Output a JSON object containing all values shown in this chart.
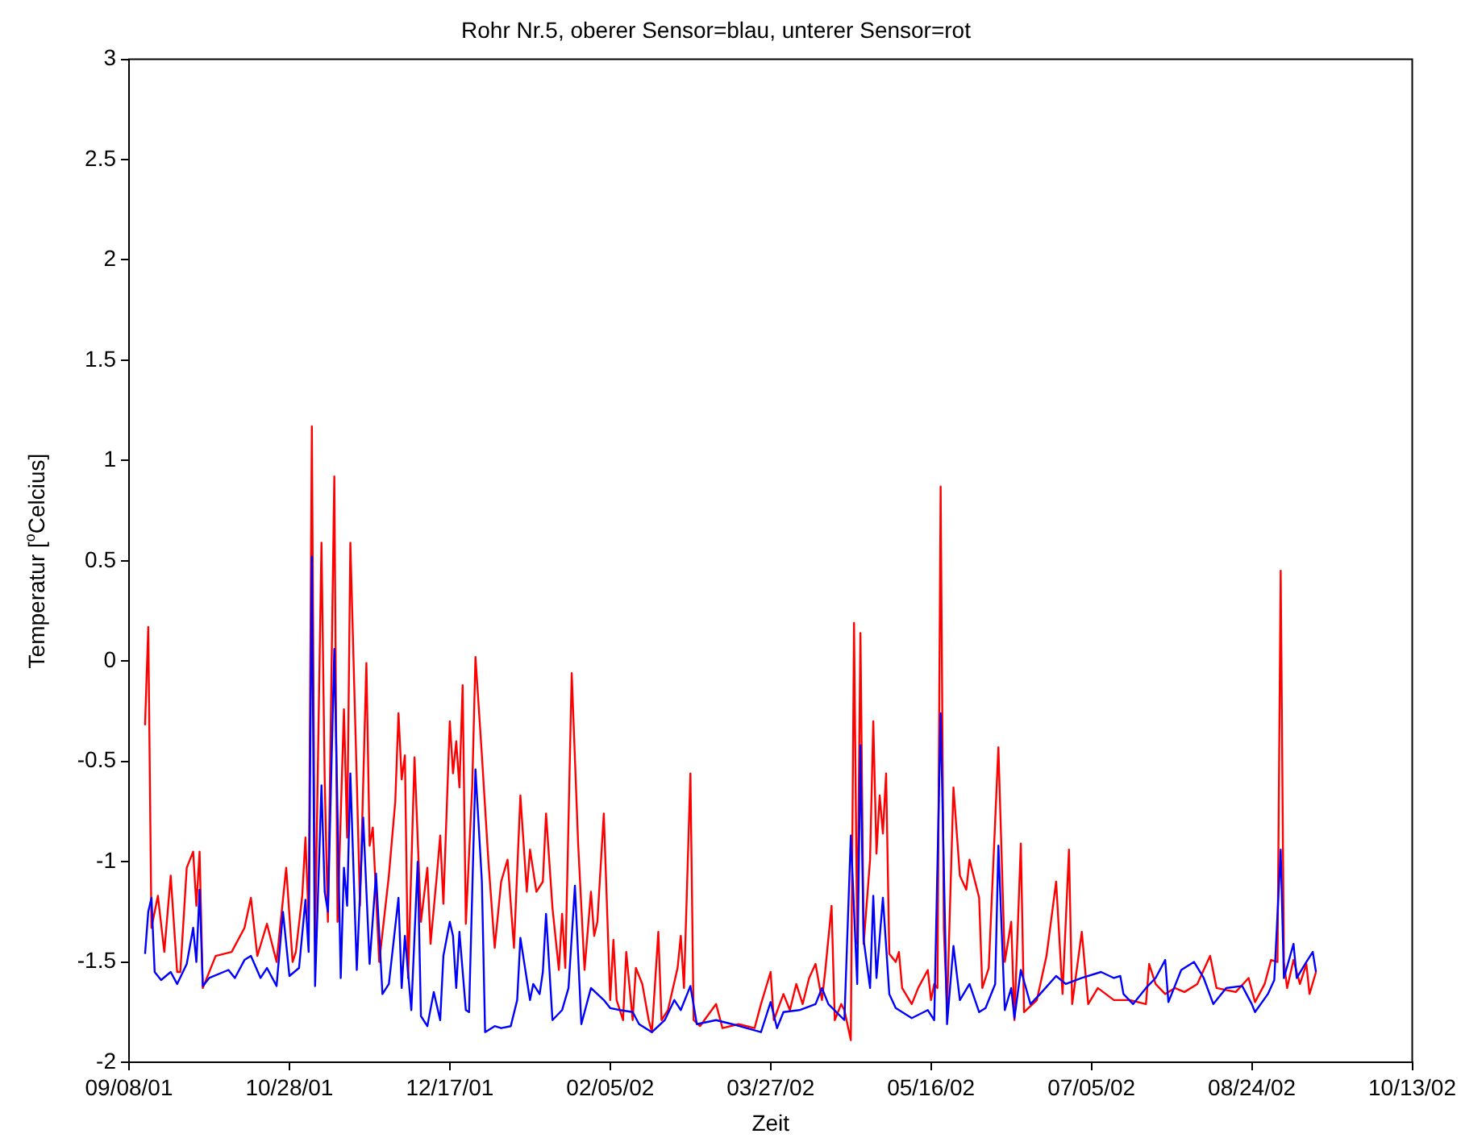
{
  "chart_data": {
    "type": "line",
    "title": "Rohr Nr.5, oberer Sensor=blau, unterer Sensor=rot",
    "xlabel": "Zeit",
    "ylabel": "Temperatur [$^{o}$Celcius]",
    "xlim": [
      "2001-09-08",
      "2002-10-13"
    ],
    "xticks": [
      {
        "value": "2001-09-08",
        "label": "09/08/01"
      },
      {
        "value": "2001-10-28",
        "label": "10/28/01"
      },
      {
        "value": "2001-12-17",
        "label": "12/17/01"
      },
      {
        "value": "2002-02-05",
        "label": "02/05/02"
      },
      {
        "value": "2002-03-27",
        "label": "03/27/02"
      },
      {
        "value": "2002-05-16",
        "label": "05/16/02"
      },
      {
        "value": "2002-07-05",
        "label": "07/05/02"
      },
      {
        "value": "2002-08-24",
        "label": "08/24/02"
      },
      {
        "value": "2002-10-13",
        "label": "10/13/02"
      }
    ],
    "ylim": [
      -2,
      3
    ],
    "yticks": [
      -2,
      -1.5,
      -1,
      -0.5,
      0,
      0.5,
      1,
      1.5,
      2,
      2.5,
      3
    ],
    "grid": false,
    "legend": false,
    "series": [
      {
        "color": "#ff0000",
        "x": [
          "2001-09-13",
          "2001-09-14",
          "2001-09-15",
          "2001-09-17",
          "2001-09-19",
          "2001-09-21",
          "2001-09-23",
          "2001-09-24",
          "2001-09-26",
          "2001-09-28",
          "2001-09-29",
          "2001-09-30",
          "2001-10-01",
          "2001-10-05",
          "2001-10-10",
          "2001-10-14",
          "2001-10-16",
          "2001-10-18",
          "2001-10-21",
          "2001-10-24",
          "2001-10-27",
          "2001-10-29",
          "2001-10-30",
          "2001-11-01",
          "2001-11-02",
          "2001-11-03",
          "2001-11-04",
          "2001-11-05",
          "2001-11-07",
          "2001-11-08",
          "2001-11-09",
          "2001-11-11",
          "2001-11-12",
          "2001-11-14",
          "2001-11-15",
          "2001-11-16",
          "2001-11-18",
          "2001-11-19",
          "2001-11-21",
          "2001-11-22",
          "2001-11-23",
          "2001-11-25",
          "2001-11-28",
          "2001-11-30",
          "2001-12-01",
          "2001-12-02",
          "2001-12-03",
          "2001-12-04",
          "2001-12-06",
          "2001-12-08",
          "2001-12-10",
          "2001-12-11",
          "2001-12-13",
          "2001-12-14",
          "2001-12-15",
          "2001-12-17",
          "2001-12-18",
          "2001-12-19",
          "2001-12-20",
          "2001-12-21",
          "2001-12-22",
          "2001-12-24",
          "2001-12-25",
          "2001-12-27",
          "2001-12-29",
          "2001-12-31",
          "2002-01-02",
          "2002-01-04",
          "2002-01-06",
          "2002-01-08",
          "2002-01-10",
          "2002-01-11",
          "2002-01-13",
          "2002-01-15",
          "2002-01-16",
          "2002-01-18",
          "2002-01-20",
          "2002-01-21",
          "2002-01-22",
          "2002-01-23",
          "2002-01-24",
          "2002-01-26",
          "2002-01-28",
          "2002-01-30",
          "2002-01-31",
          "2002-02-01",
          "2002-02-03",
          "2002-02-05",
          "2002-02-06",
          "2002-02-07",
          "2002-02-09",
          "2002-02-10",
          "2002-02-12",
          "2002-02-13",
          "2002-02-15",
          "2002-02-17",
          "2002-02-18",
          "2002-02-20",
          "2002-02-21",
          "2002-02-23",
          "2002-02-26",
          "2002-02-27",
          "2002-02-28",
          "2002-03-02",
          "2002-03-03",
          "2002-03-05",
          "2002-03-10",
          "2002-03-12",
          "2002-03-17",
          "2002-03-22",
          "2002-03-24",
          "2002-03-27",
          "2002-03-28",
          "2002-03-31",
          "2002-04-02",
          "2002-04-04",
          "2002-04-06",
          "2002-04-08",
          "2002-04-10",
          "2002-04-12",
          "2002-04-13",
          "2002-04-15",
          "2002-04-16",
          "2002-04-18",
          "2002-04-19",
          "2002-04-21",
          "2002-04-22",
          "2002-04-23",
          "2002-04-24",
          "2002-04-25",
          "2002-04-27",
          "2002-04-28",
          "2002-04-29",
          "2002-04-30",
          "2002-05-01",
          "2002-05-02",
          "2002-05-03",
          "2002-05-05",
          "2002-05-06",
          "2002-05-07",
          "2002-05-10",
          "2002-05-12",
          "2002-05-15",
          "2002-05-16",
          "2002-05-17",
          "2002-05-18",
          "2002-05-19",
          "2002-05-20",
          "2002-05-21",
          "2002-05-23",
          "2002-05-25",
          "2002-05-27",
          "2002-05-28",
          "2002-05-31",
          "2002-06-01",
          "2002-06-03",
          "2002-06-06",
          "2002-06-08",
          "2002-06-10",
          "2002-06-11",
          "2002-06-13",
          "2002-06-14",
          "2002-06-18",
          "2002-06-21",
          "2002-06-24",
          "2002-06-26",
          "2002-06-28",
          "2002-06-29",
          "2002-07-02",
          "2002-07-04",
          "2002-07-07",
          "2002-07-12",
          "2002-07-17",
          "2002-07-22",
          "2002-07-23",
          "2002-07-25",
          "2002-07-28",
          "2002-07-31",
          "2002-08-03",
          "2002-08-07",
          "2002-08-11",
          "2002-08-13",
          "2002-08-19",
          "2002-08-23",
          "2002-08-25",
          "2002-08-28",
          "2002-08-30",
          "2002-09-01",
          "2002-09-02",
          "2002-09-03",
          "2002-09-04",
          "2002-09-06",
          "2002-09-08",
          "2002-09-10",
          "2002-09-11",
          "2002-09-13"
        ],
        "values": [
          -0.32,
          0.17,
          -1.33,
          -1.17,
          -1.45,
          -1.07,
          -1.55,
          -1.55,
          -1.03,
          -0.95,
          -1.22,
          -0.95,
          -1.63,
          -1.47,
          -1.45,
          -1.33,
          -1.18,
          -1.47,
          -1.31,
          -1.5,
          -1.03,
          -1.5,
          -1.45,
          -1.17,
          -0.88,
          -1.29,
          1.17,
          -1.39,
          0.59,
          -0.59,
          -1.3,
          0.92,
          -1.3,
          -0.24,
          -0.88,
          0.59,
          -0.59,
          -1.22,
          -0.01,
          -0.92,
          -0.83,
          -1.5,
          -1.07,
          -0.7,
          -0.26,
          -0.59,
          -0.47,
          -1.58,
          -0.48,
          -1.3,
          -1.03,
          -1.41,
          -1.06,
          -0.87,
          -1.21,
          -0.3,
          -0.56,
          -0.4,
          -0.63,
          -0.12,
          -1.31,
          -0.62,
          0.02,
          -0.47,
          -0.99,
          -1.43,
          -1.1,
          -0.99,
          -1.43,
          -0.67,
          -1.15,
          -0.94,
          -1.15,
          -1.1,
          -0.76,
          -1.23,
          -1.54,
          -1.26,
          -1.53,
          -0.8,
          -0.06,
          -0.91,
          -1.54,
          -1.15,
          -1.37,
          -1.3,
          -0.76,
          -1.69,
          -1.39,
          -1.69,
          -1.79,
          -1.45,
          -1.79,
          -1.53,
          -1.61,
          -1.79,
          -1.85,
          -1.35,
          -1.79,
          -1.74,
          -1.53,
          -1.37,
          -1.63,
          -0.56,
          -1.79,
          -1.82,
          -1.71,
          -1.83,
          -1.81,
          -1.83,
          -1.71,
          -1.55,
          -1.79,
          -1.66,
          -1.74,
          -1.61,
          -1.71,
          -1.58,
          -1.51,
          -1.69,
          -1.55,
          -1.22,
          -1.79,
          -1.71,
          -1.74,
          -1.89,
          0.19,
          -1.41,
          0.14,
          -1.41,
          -0.99,
          -0.3,
          -0.96,
          -0.67,
          -0.86,
          -0.56,
          -1.46,
          -1.5,
          -1.45,
          -1.63,
          -1.71,
          -1.63,
          -1.54,
          -1.69,
          -1.61,
          -1.63,
          0.87,
          -1.34,
          -1.73,
          -0.63,
          -1.07,
          -1.14,
          -0.99,
          -1.18,
          -1.63,
          -1.53,
          -0.43,
          -1.5,
          -1.3,
          -1.79,
          -0.91,
          -1.75,
          -1.69,
          -1.47,
          -1.1,
          -1.66,
          -0.94,
          -1.71,
          -1.35,
          -1.71,
          -1.63,
          -1.69,
          -1.69,
          -1.71,
          -1.51,
          -1.61,
          -1.66,
          -1.63,
          -1.65,
          -1.61,
          -1.47,
          -1.63,
          -1.65,
          -1.58,
          -1.7,
          -1.61,
          -1.49,
          -1.5,
          0.45,
          -1.5,
          -1.63,
          -1.49,
          -1.61,
          -1.51,
          -1.66,
          -1.55
        ]
      },
      {
        "color": "#0000ff",
        "x": [
          "2001-09-13",
          "2001-09-14",
          "2001-09-15",
          "2001-09-16",
          "2001-09-18",
          "2001-09-21",
          "2001-09-23",
          "2001-09-26",
          "2001-09-28",
          "2001-09-29",
          "2001-09-30",
          "2001-10-01",
          "2001-10-03",
          "2001-10-09",
          "2001-10-11",
          "2001-10-14",
          "2001-10-16",
          "2001-10-19",
          "2001-10-21",
          "2001-10-24",
          "2001-10-26",
          "2001-10-28",
          "2001-10-31",
          "2001-11-02",
          "2001-11-03",
          "2001-11-04",
          "2001-11-05",
          "2001-11-07",
          "2001-11-08",
          "2001-11-09",
          "2001-11-11",
          "2001-11-13",
          "2001-11-14",
          "2001-11-15",
          "2001-11-16",
          "2001-11-18",
          "2001-11-20",
          "2001-11-22",
          "2001-11-24",
          "2001-11-26",
          "2001-11-28",
          "2001-12-01",
          "2001-12-02",
          "2001-12-03",
          "2001-12-05",
          "2001-12-07",
          "2001-12-08",
          "2001-12-10",
          "2001-12-12",
          "2001-12-14",
          "2001-12-15",
          "2001-12-17",
          "2001-12-18",
          "2001-12-19",
          "2001-12-20",
          "2001-12-22",
          "2001-12-23",
          "2001-12-25",
          "2001-12-27",
          "2001-12-28",
          "2001-12-31",
          "2002-01-02",
          "2002-01-05",
          "2002-01-07",
          "2002-01-08",
          "2002-01-11",
          "2002-01-12",
          "2002-01-14",
          "2002-01-15",
          "2002-01-16",
          "2002-01-18",
          "2002-01-21",
          "2002-01-23",
          "2002-01-25",
          "2002-01-27",
          "2002-01-30",
          "2002-02-01",
          "2002-02-03",
          "2002-02-05",
          "2002-02-08",
          "2002-02-12",
          "2002-02-14",
          "2002-02-18",
          "2002-02-22",
          "2002-02-25",
          "2002-02-27",
          "2002-03-02",
          "2002-03-04",
          "2002-03-10",
          "2002-03-15",
          "2002-03-24",
          "2002-03-27",
          "2002-03-29",
          "2002-03-31",
          "2002-04-05",
          "2002-04-10",
          "2002-04-12",
          "2002-04-14",
          "2002-04-19",
          "2002-04-21",
          "2002-04-23",
          "2002-04-24",
          "2002-04-25",
          "2002-04-27",
          "2002-04-28",
          "2002-04-29",
          "2002-05-01",
          "2002-05-03",
          "2002-05-05",
          "2002-05-10",
          "2002-05-15",
          "2002-05-17",
          "2002-05-19",
          "2002-05-21",
          "2002-05-23",
          "2002-05-25",
          "2002-05-28",
          "2002-05-31",
          "2002-06-02",
          "2002-06-05",
          "2002-06-06",
          "2002-06-08",
          "2002-06-10",
          "2002-06-11",
          "2002-06-13",
          "2002-06-16",
          "2002-06-19",
          "2002-06-24",
          "2002-06-27",
          "2002-07-02",
          "2002-07-08",
          "2002-07-12",
          "2002-07-14",
          "2002-07-15",
          "2002-07-18",
          "2002-07-22",
          "2002-07-25",
          "2002-07-28",
          "2002-07-29",
          "2002-08-02",
          "2002-08-06",
          "2002-08-09",
          "2002-08-12",
          "2002-08-16",
          "2002-08-21",
          "2002-08-24",
          "2002-08-25",
          "2002-08-29",
          "2002-08-31",
          "2002-09-02",
          "2002-09-03",
          "2002-09-06",
          "2002-09-07",
          "2002-09-10",
          "2002-09-12",
          "2002-09-13"
        ],
        "values": [
          -1.46,
          -1.25,
          -1.18,
          -1.55,
          -1.59,
          -1.55,
          -1.61,
          -1.51,
          -1.33,
          -1.5,
          -1.14,
          -1.62,
          -1.58,
          -1.54,
          -1.58,
          -1.49,
          -1.47,
          -1.58,
          -1.53,
          -1.62,
          -1.25,
          -1.57,
          -1.53,
          -1.19,
          -1.45,
          0.52,
          -1.62,
          -0.62,
          -1.15,
          -1.25,
          0.06,
          -1.58,
          -1.03,
          -1.22,
          -0.56,
          -1.54,
          -0.78,
          -1.51,
          -1.06,
          -1.66,
          -1.61,
          -1.18,
          -1.63,
          -1.37,
          -1.74,
          -1.0,
          -1.77,
          -1.82,
          -1.65,
          -1.79,
          -1.47,
          -1.3,
          -1.37,
          -1.63,
          -1.35,
          -1.74,
          -1.75,
          -0.54,
          -1.1,
          -1.85,
          -1.82,
          -1.83,
          -1.82,
          -1.69,
          -1.38,
          -1.69,
          -1.61,
          -1.66,
          -1.55,
          -1.26,
          -1.79,
          -1.74,
          -1.63,
          -1.12,
          -1.81,
          -1.63,
          -1.66,
          -1.69,
          -1.73,
          -1.74,
          -1.75,
          -1.81,
          -1.85,
          -1.79,
          -1.69,
          -1.74,
          -1.62,
          -1.81,
          -1.79,
          -1.81,
          -1.85,
          -1.7,
          -1.83,
          -1.75,
          -1.74,
          -1.71,
          -1.63,
          -1.71,
          -1.79,
          -0.87,
          -1.61,
          -0.42,
          -1.39,
          -1.63,
          -1.17,
          -1.58,
          -1.18,
          -1.66,
          -1.73,
          -1.78,
          -1.74,
          -1.79,
          -0.26,
          -1.81,
          -1.42,
          -1.69,
          -1.61,
          -1.75,
          -1.73,
          -1.61,
          -0.92,
          -1.74,
          -1.63,
          -1.78,
          -1.54,
          -1.71,
          -1.66,
          -1.57,
          -1.61,
          -1.58,
          -1.55,
          -1.58,
          -1.57,
          -1.66,
          -1.71,
          -1.63,
          -1.58,
          -1.49,
          -1.7,
          -1.54,
          -1.5,
          -1.58,
          -1.71,
          -1.63,
          -1.62,
          -1.71,
          -1.75,
          -1.66,
          -1.59,
          -0.94,
          -1.58,
          -1.41,
          -1.58,
          -1.5,
          -1.45,
          -1.55
        ]
      }
    ]
  }
}
